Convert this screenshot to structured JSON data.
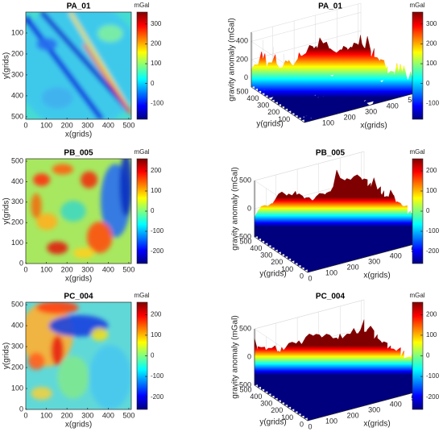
{
  "chart_data": [
    {
      "type": "heatmap",
      "title": "PA_01",
      "xlabel": "x(grids)",
      "ylabel": "y(grids)",
      "xlim": [
        0,
        512
      ],
      "ylim": [
        0,
        512
      ],
      "y_reversed": true,
      "xticks": [
        0,
        100,
        200,
        300,
        400,
        500
      ],
      "yticks": [
        100,
        200,
        300,
        400,
        500
      ],
      "colorbar": {
        "label": "mGal",
        "clim": [
          -180,
          360
        ],
        "ticks": [
          300,
          200,
          100,
          0,
          -100
        ]
      }
    },
    {
      "type": "surface",
      "title": "PA_01",
      "xlabel": "x(grids)",
      "ylabel": "y(grids)",
      "zlabel": "gravity anomaly (mGal)",
      "xlim": [
        0,
        512
      ],
      "ylim": [
        0,
        512
      ],
      "zlim": [
        -100,
        500
      ],
      "xticks": [
        100,
        200,
        300,
        400,
        500
      ],
      "yticks": [
        500,
        400,
        300,
        200,
        100
      ],
      "zticks": [
        400,
        200,
        0
      ],
      "colorbar": {
        "label": "mGal",
        "clim": [
          -180,
          360
        ],
        "ticks": [
          300,
          200,
          100,
          0,
          -100
        ]
      }
    },
    {
      "type": "heatmap",
      "title": "PB_005",
      "xlabel": "x(grids)",
      "ylabel": "y(grids)",
      "xlim": [
        0,
        512
      ],
      "ylim": [
        0,
        512
      ],
      "y_reversed": false,
      "xticks": [
        0,
        100,
        200,
        300,
        400,
        500
      ],
      "yticks": [
        0,
        100,
        200,
        300,
        400,
        500
      ],
      "colorbar": {
        "label": "mGal",
        "clim": [
          -260,
          260
        ],
        "ticks": [
          200,
          100,
          0,
          -100,
          -200
        ]
      }
    },
    {
      "type": "surface",
      "title": "PB_005",
      "xlabel": "x(grids)",
      "ylabel": "y(grids)",
      "zlabel": "gravity anomaly (mGal)",
      "xlim": [
        0,
        512
      ],
      "ylim": [
        0,
        512
      ],
      "zlim": [
        -500,
        500
      ],
      "xticks": [
        0,
        100,
        200,
        300,
        400,
        500
      ],
      "yticks": [
        500,
        400,
        300,
        200,
        100,
        0
      ],
      "zticks": [
        500,
        0,
        -500
      ],
      "colorbar": {
        "label": "mGal",
        "clim": [
          -260,
          260
        ],
        "ticks": [
          200,
          100,
          0,
          -100,
          -200
        ]
      }
    },
    {
      "type": "heatmap",
      "title": "PC_004",
      "xlabel": "x(grids)",
      "ylabel": "y(grids)",
      "xlim": [
        0,
        512
      ],
      "ylim": [
        0,
        512
      ],
      "y_reversed": false,
      "xticks": [
        0,
        100,
        200,
        300,
        400,
        500
      ],
      "yticks": [
        0,
        100,
        200,
        300,
        400,
        500
      ],
      "colorbar": {
        "label": "mGal",
        "clim": [
          -260,
          260
        ],
        "ticks": [
          200,
          100,
          0,
          -100,
          -200
        ]
      }
    },
    {
      "type": "surface",
      "title": "PC_004",
      "xlabel": "x(grids)",
      "ylabel": "y(grids)",
      "zlabel": "gravity anomaly (mGal)",
      "xlim": [
        0,
        512
      ],
      "ylim": [
        0,
        512
      ],
      "zlim": [
        -500,
        500
      ],
      "xticks": [
        0,
        100,
        200,
        300,
        400,
        500
      ],
      "yticks": [
        500,
        400,
        300,
        200,
        100,
        0
      ],
      "zticks": [
        500,
        0,
        -500
      ],
      "colorbar": {
        "label": "mGal",
        "clim": [
          -260,
          260
        ],
        "ticks": [
          200,
          100,
          0,
          -100,
          -200
        ]
      }
    }
  ]
}
